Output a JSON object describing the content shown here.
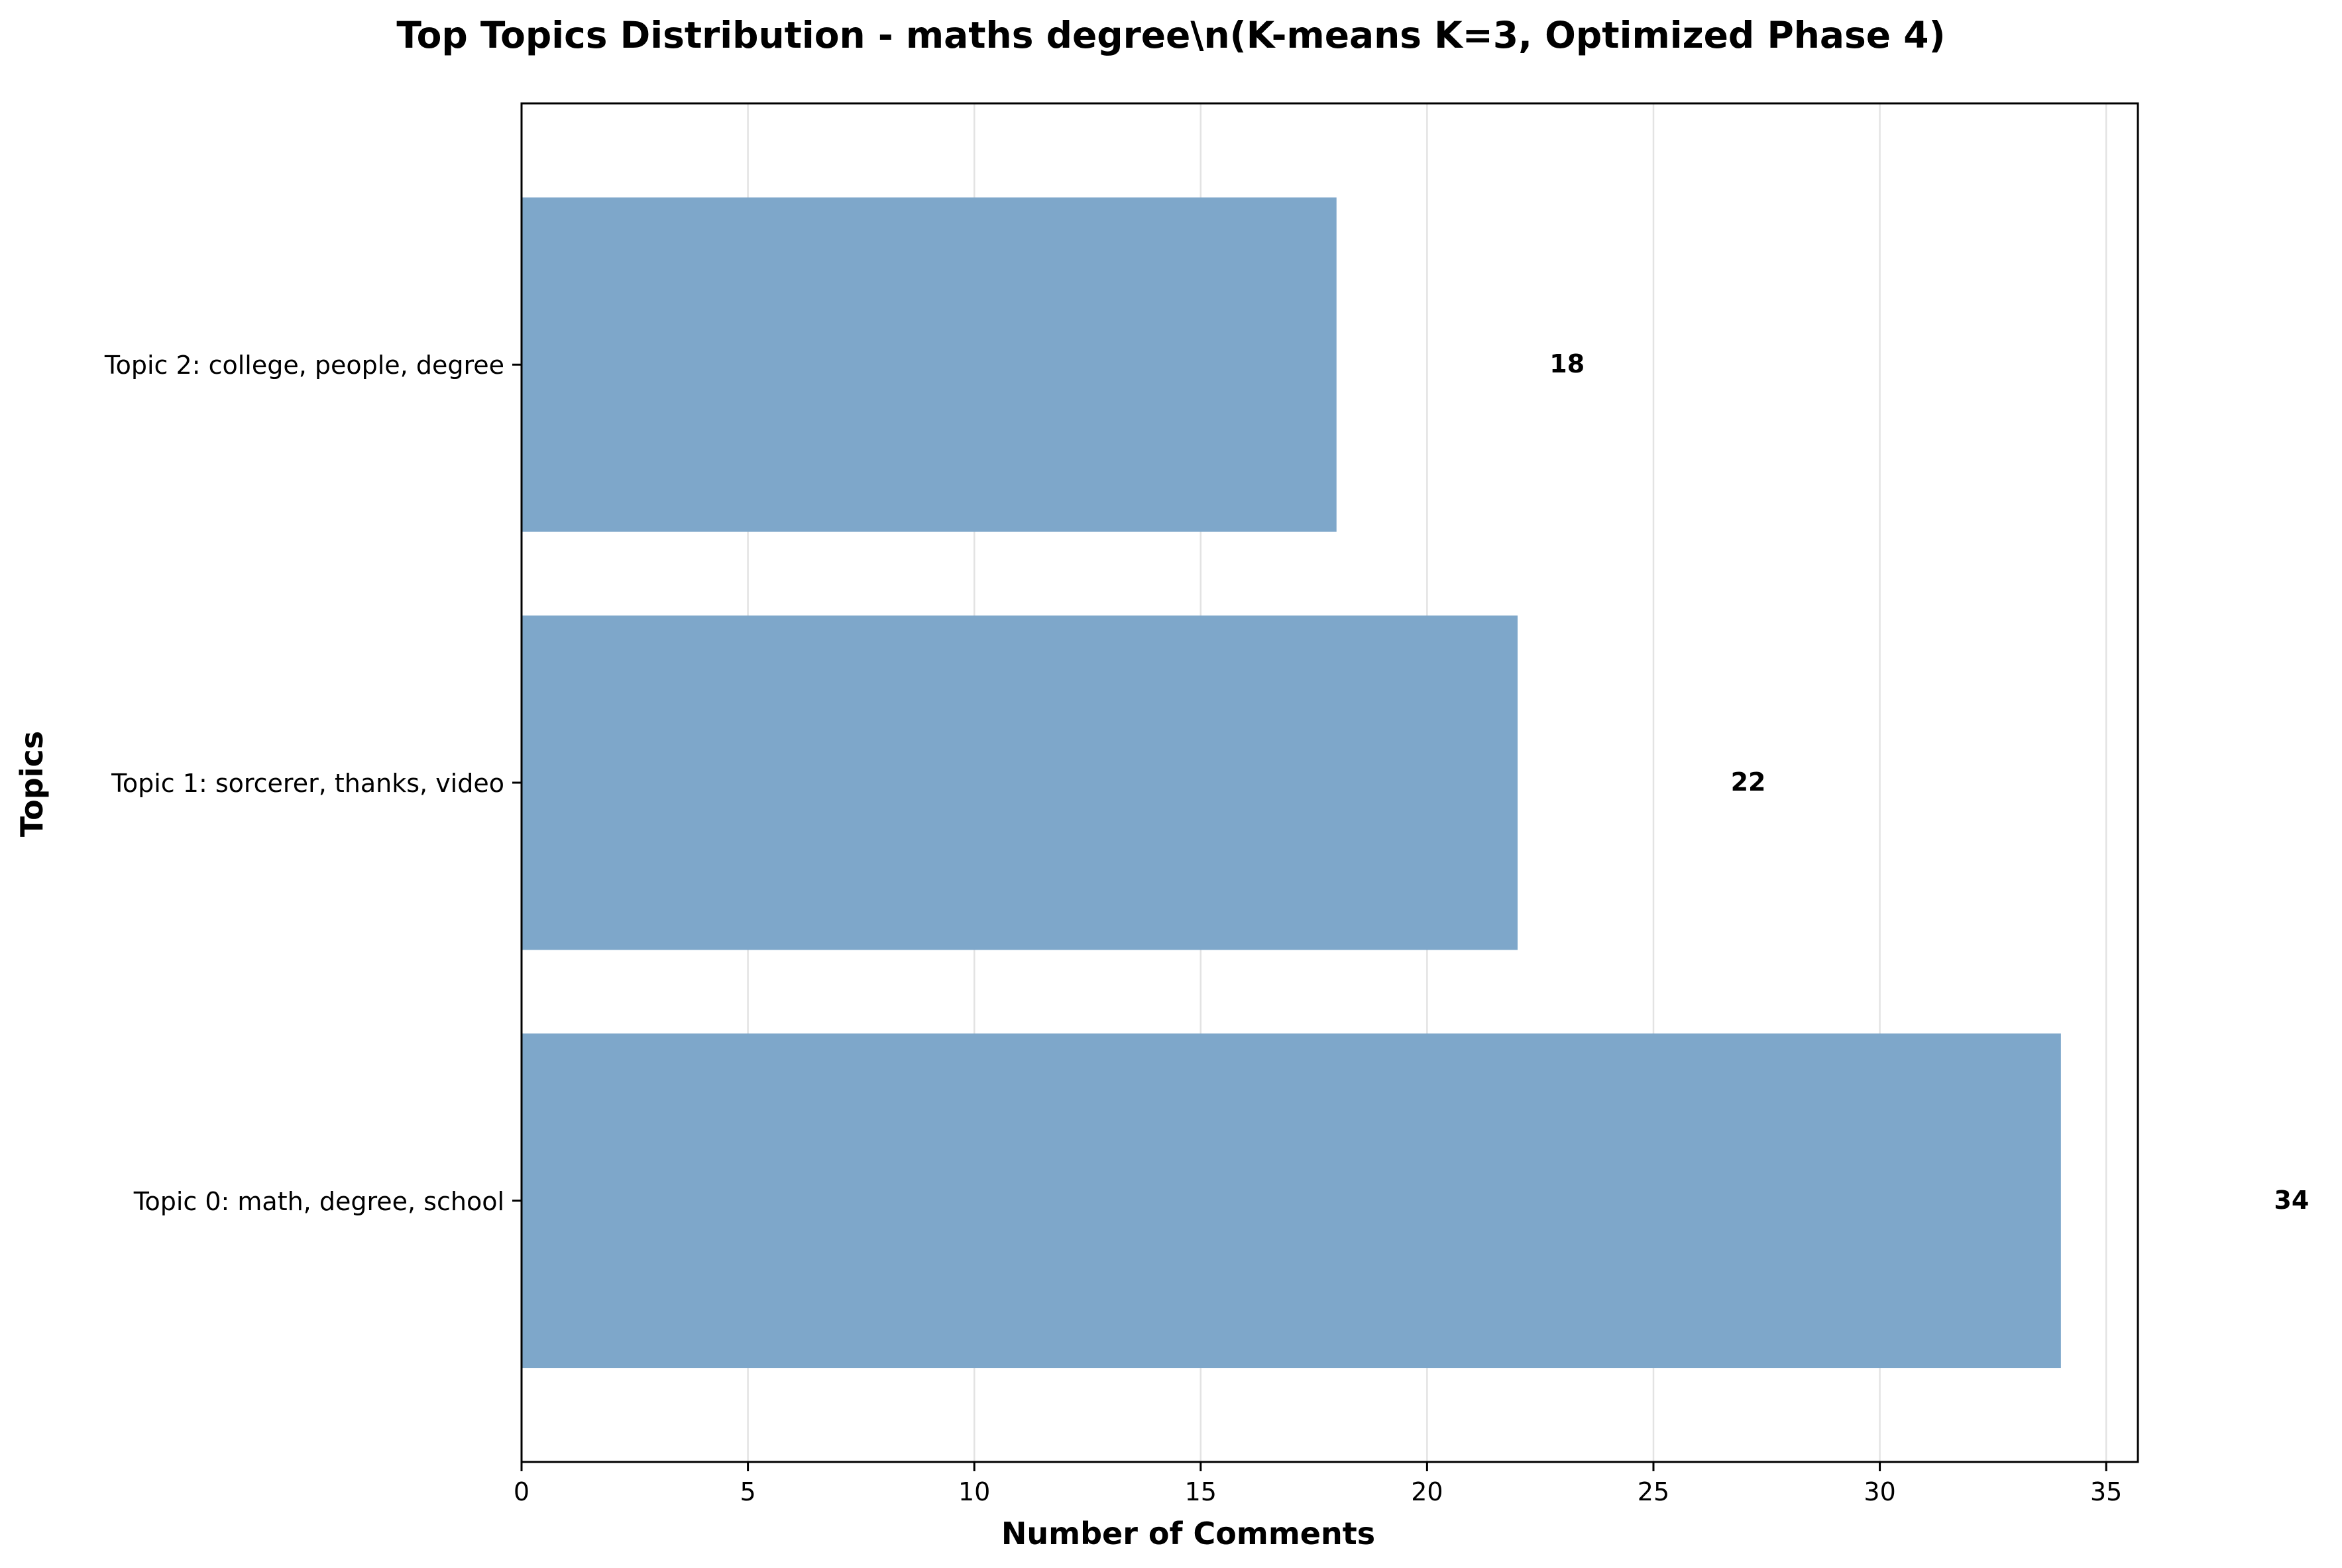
{
  "chart_data": {
    "type": "bar",
    "orientation": "horizontal",
    "title": "Top Topics Distribution - maths degree\\n(K-means K=3, Optimized Phase 4)",
    "xlabel": "Number of Comments",
    "ylabel": "Topics",
    "categories": [
      "Topic 0: math, degree, school",
      "Topic 1: sorcerer, thanks, video",
      "Topic 2: college, people, degree"
    ],
    "values": [
      34,
      22,
      18
    ],
    "value_labels": [
      "34",
      "22",
      "18"
    ],
    "xlim": [
      0,
      35.7
    ],
    "xticks": [
      0,
      5,
      10,
      15,
      20,
      25,
      30,
      35
    ],
    "grid": "vertical",
    "bar_color": "#7ea7ca"
  }
}
